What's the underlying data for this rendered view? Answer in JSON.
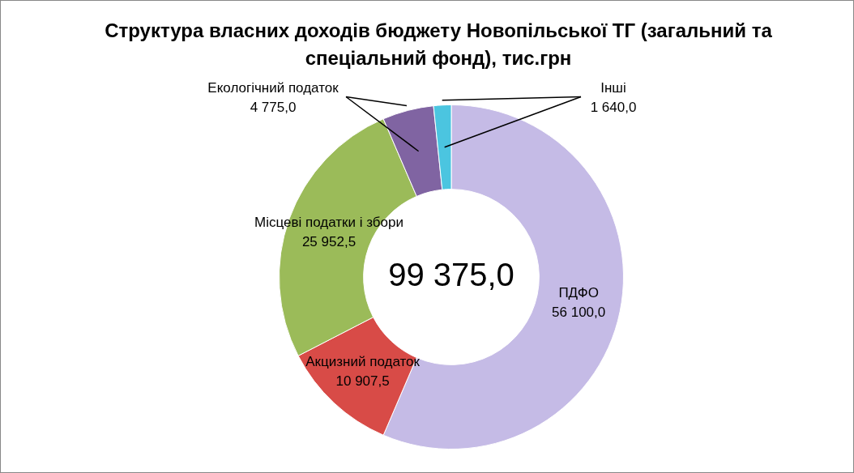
{
  "chart_data": {
    "type": "donut",
    "title": "Структура власних доходів бюджету Новопільської ТГ (загальний та спеціальний фонд), тис.грн",
    "categories": [
      "ПДФО",
      "Акцизний податок",
      "Місцеві податки і збори",
      "Екологічний податок",
      "Інші"
    ],
    "values": [
      56100.0,
      10907.5,
      25952.5,
      4775.0,
      1640.0
    ],
    "value_labels": [
      "56 100,0",
      "10 907,5",
      "25 952,5",
      "4 775,0",
      "1 640,0"
    ],
    "colors": [
      "#c5bbe6",
      "#d84b47",
      "#9bbb59",
      "#8064a2",
      "#4bc5e0"
    ],
    "annotations": [
      "99 375,0"
    ],
    "legend": false
  }
}
